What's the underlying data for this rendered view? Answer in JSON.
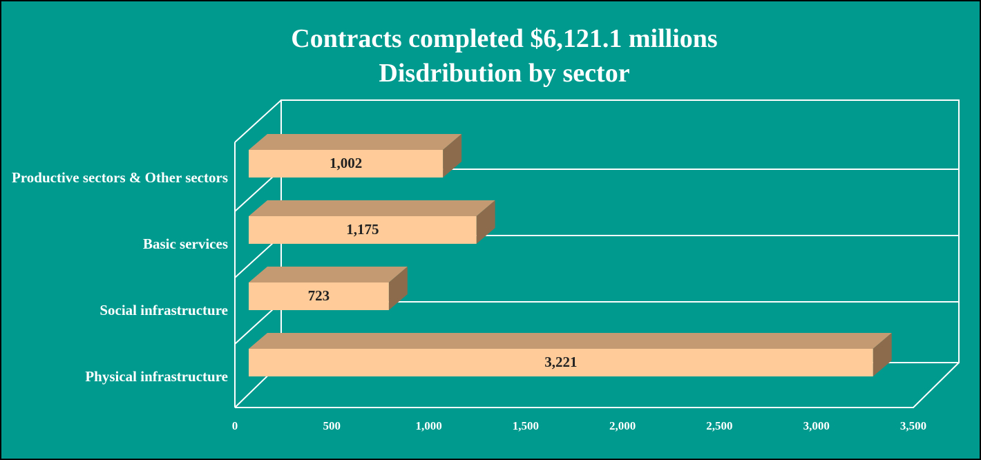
{
  "chart_data": {
    "type": "bar3d",
    "title": "Contracts completed $6,121.1 millions",
    "subtitle": "Disdribution by sector",
    "categories": [
      "Physical infrastructure",
      "Social infrastructure",
      "Basic services",
      "Productive sectors & Other sectors"
    ],
    "values": [
      3221,
      723,
      1175,
      1002
    ],
    "value_labels": [
      "3,221",
      "723",
      "1,175",
      "1,002"
    ],
    "colors": {
      "front": "#ffcc99",
      "top": "#c49a72",
      "side": "#8b6b4c"
    },
    "xlim": [
      0,
      3500
    ],
    "xticks": [
      0,
      500,
      {
        "value": 1000,
        "label": "1,000"
      },
      {
        "value": 1500,
        "label": "1,500"
      },
      {
        "value": 2000,
        "label": "2,000"
      },
      {
        "value": 2500,
        "label": "2,500"
      },
      {
        "value": 3000,
        "label": "3,000"
      },
      {
        "value": 3500,
        "label": "3,500"
      }
    ]
  }
}
